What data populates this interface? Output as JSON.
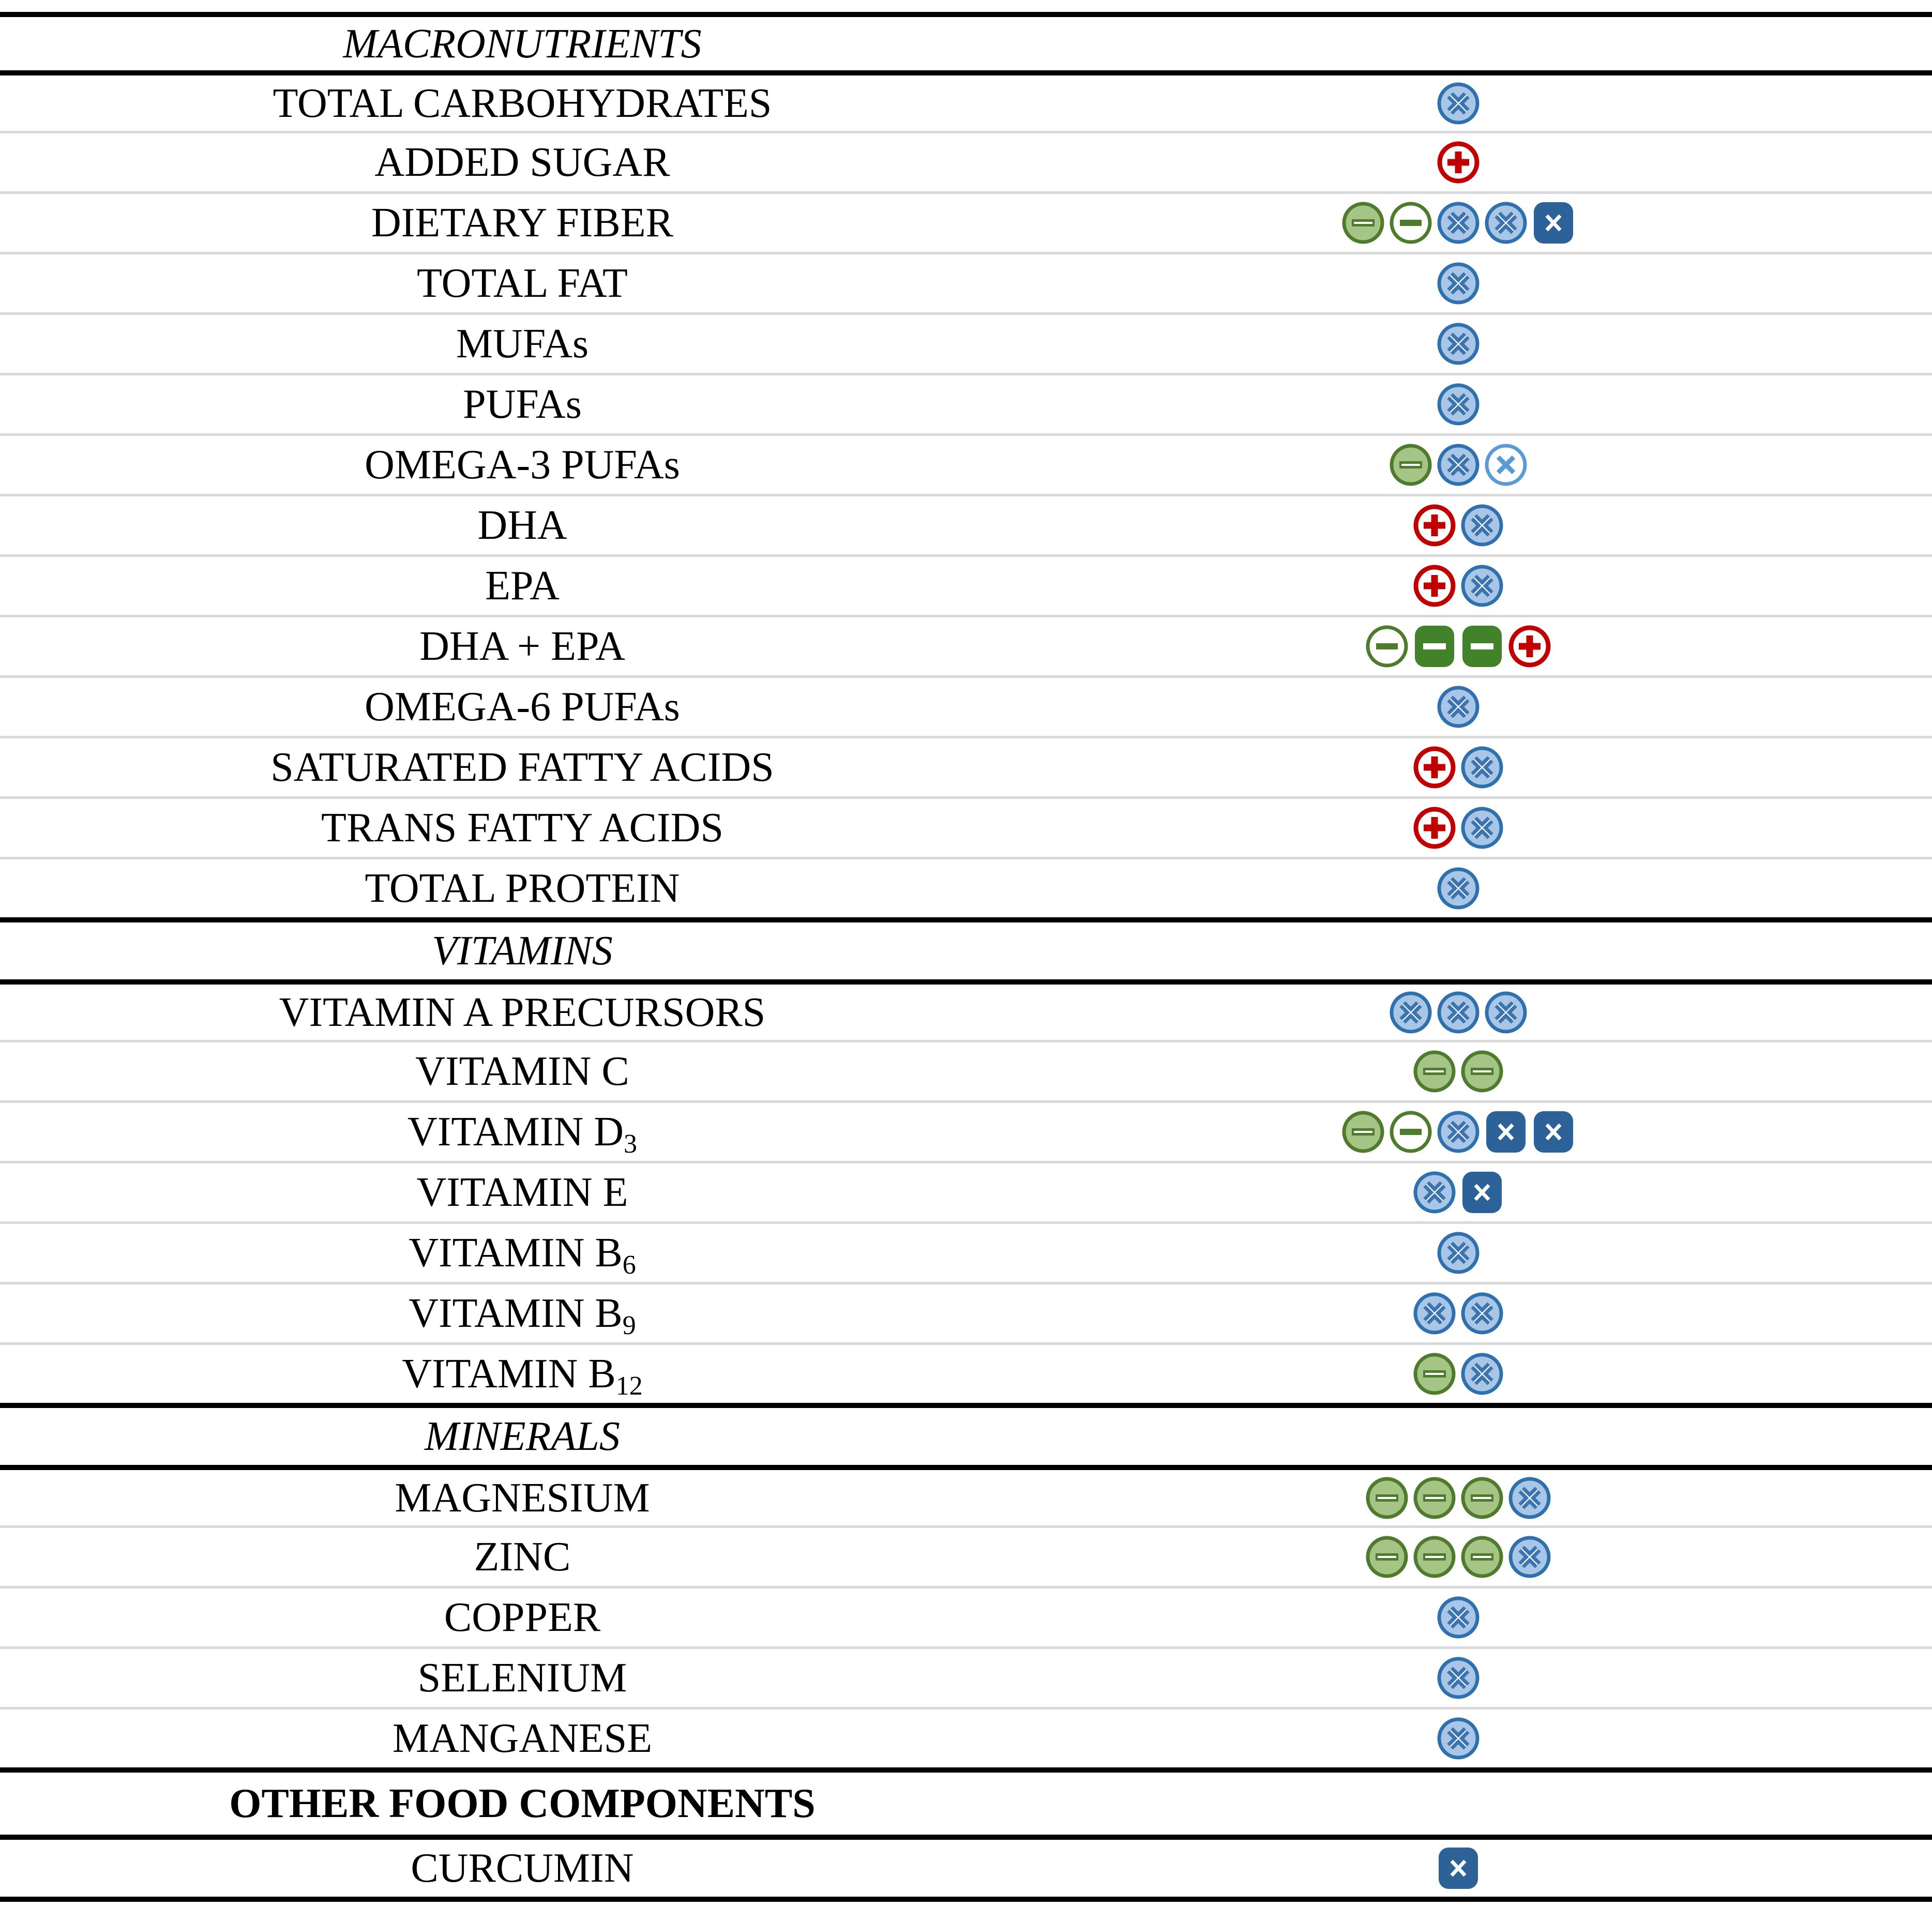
{
  "table": {
    "title": "nutrient-effects-summary-table",
    "colors": {
      "section_line": "#000000",
      "row_line": "#D9D9D9",
      "blue_fill": "#A9C6E6",
      "blue_border": "#2E71AE",
      "blue_x": "#3C74B0",
      "blue_light_outline": "#5B9BD5",
      "blue_square": "#2C6298",
      "green_fill": "#A4C585",
      "green_border": "#4E7B2C",
      "green_square": "#41822A",
      "red": "#C00000",
      "white": "#FFFFFF"
    },
    "icon_types": {
      "blue-circle-x": {
        "shape": "circle",
        "symbol": "x-cross",
        "fill": "#A9C6E6",
        "border": "#2E71AE",
        "symbol_color": "#3C74B0"
      },
      "blue-circle-x-outline": {
        "shape": "circle",
        "symbol": "x-cross",
        "fill": "#FFFFFF",
        "border": "#5B9BD5",
        "symbol_color": "#5B9BD5"
      },
      "blue-square-x": {
        "shape": "rounded-square",
        "symbol": "x-cross",
        "fill": "#2C6298",
        "border": "#2C6298",
        "symbol_color": "#FFFFFF"
      },
      "green-circle-minus": {
        "shape": "circle",
        "symbol": "minus",
        "fill": "#A4C585",
        "border": "#4E7B2C",
        "symbol_color": "#4E7B2C"
      },
      "green-circle-minus-outline": {
        "shape": "circle",
        "symbol": "minus",
        "fill": "#FFFFFF",
        "border": "#4E7B2C",
        "symbol_color": "#4E7B2C"
      },
      "green-square-minus": {
        "shape": "rounded-square",
        "symbol": "minus",
        "fill": "#41822A",
        "border": "#41822A",
        "symbol_color": "#FFFFFF"
      },
      "red-circle-plus": {
        "shape": "circle",
        "symbol": "plus",
        "fill": "#FFFFFF",
        "border": "#C00000",
        "symbol_color": "#C00000"
      }
    },
    "rows": [
      {
        "type": "section",
        "label": "MACRONUTRIENTS",
        "style": "italic",
        "icons": []
      },
      {
        "type": "item",
        "label": "TOTAL CARBOHYDRATES",
        "icons": [
          "blue-circle-x"
        ]
      },
      {
        "type": "item",
        "label": "ADDED SUGAR",
        "icons": [
          "red-circle-plus"
        ]
      },
      {
        "type": "item",
        "label": "DIETARY FIBER",
        "icons": [
          "green-circle-minus",
          "green-circle-minus-outline",
          "blue-circle-x",
          "blue-circle-x",
          "blue-square-x"
        ]
      },
      {
        "type": "item",
        "label": "TOTAL FAT",
        "icons": [
          "blue-circle-x"
        ]
      },
      {
        "type": "item",
        "label": "MUFAs",
        "icons": [
          "blue-circle-x"
        ]
      },
      {
        "type": "item",
        "label": "PUFAs",
        "icons": [
          "blue-circle-x"
        ]
      },
      {
        "type": "item",
        "label": "OMEGA-3 PUFAs",
        "icons": [
          "green-circle-minus",
          "blue-circle-x",
          "blue-circle-x-outline"
        ]
      },
      {
        "type": "item",
        "label": "DHA",
        "icons": [
          "red-circle-plus",
          "blue-circle-x"
        ]
      },
      {
        "type": "item",
        "label": "EPA",
        "icons": [
          "red-circle-plus",
          "blue-circle-x"
        ]
      },
      {
        "type": "item",
        "label": "DHA + EPA",
        "icons": [
          "green-circle-minus-outline",
          "green-square-minus",
          "green-square-minus",
          "red-circle-plus"
        ]
      },
      {
        "type": "item",
        "label": "OMEGA-6 PUFAs",
        "icons": [
          "blue-circle-x"
        ]
      },
      {
        "type": "item",
        "label": "SATURATED FATTY ACIDS",
        "icons": [
          "red-circle-plus",
          "blue-circle-x"
        ]
      },
      {
        "type": "item",
        "label": "TRANS FATTY ACIDS",
        "icons": [
          "red-circle-plus",
          "blue-circle-x"
        ]
      },
      {
        "type": "item",
        "label": "TOTAL PROTEIN",
        "icons": [
          "blue-circle-x"
        ]
      },
      {
        "type": "section",
        "label": "VITAMINS",
        "style": "italic",
        "icons": []
      },
      {
        "type": "item",
        "label": "VITAMIN A PRECURSORS",
        "icons": [
          "blue-circle-x",
          "blue-circle-x",
          "blue-circle-x"
        ]
      },
      {
        "type": "item",
        "label": "VITAMIN C",
        "icons": [
          "green-circle-minus",
          "green-circle-minus"
        ]
      },
      {
        "type": "item",
        "label": "VITAMIN D",
        "sub": "3",
        "icons": [
          "green-circle-minus",
          "green-circle-minus-outline",
          "blue-circle-x",
          "blue-square-x",
          "blue-square-x"
        ]
      },
      {
        "type": "item",
        "label": "VITAMIN E",
        "icons": [
          "blue-circle-x",
          "blue-square-x"
        ]
      },
      {
        "type": "item",
        "label": "VITAMIN B",
        "sub": "6",
        "icons": [
          "blue-circle-x"
        ]
      },
      {
        "type": "item",
        "label": "VITAMIN B",
        "sub": "9",
        "icons": [
          "blue-circle-x",
          "blue-circle-x"
        ]
      },
      {
        "type": "item",
        "label": "VITAMIN B",
        "sub": "12",
        "icons": [
          "green-circle-minus",
          "blue-circle-x"
        ]
      },
      {
        "type": "section",
        "label": "MINERALS",
        "style": "italic",
        "icons": []
      },
      {
        "type": "item",
        "label": "MAGNESIUM",
        "icons": [
          "green-circle-minus",
          "green-circle-minus",
          "green-circle-minus",
          "blue-circle-x"
        ]
      },
      {
        "type": "item",
        "label": "ZINC",
        "icons": [
          "green-circle-minus",
          "green-circle-minus",
          "green-circle-minus",
          "blue-circle-x"
        ]
      },
      {
        "type": "item",
        "label": "COPPER",
        "icons": [
          "blue-circle-x"
        ]
      },
      {
        "type": "item",
        "label": "SELENIUM",
        "icons": [
          "blue-circle-x"
        ]
      },
      {
        "type": "item",
        "label": "MANGANESE",
        "icons": [
          "blue-circle-x"
        ]
      },
      {
        "type": "section",
        "label": "OTHER FOOD COMPONENTS",
        "style": "bold",
        "icons": []
      },
      {
        "type": "item",
        "label": "CURCUMIN",
        "icons": [
          "blue-square-x"
        ]
      }
    ]
  }
}
